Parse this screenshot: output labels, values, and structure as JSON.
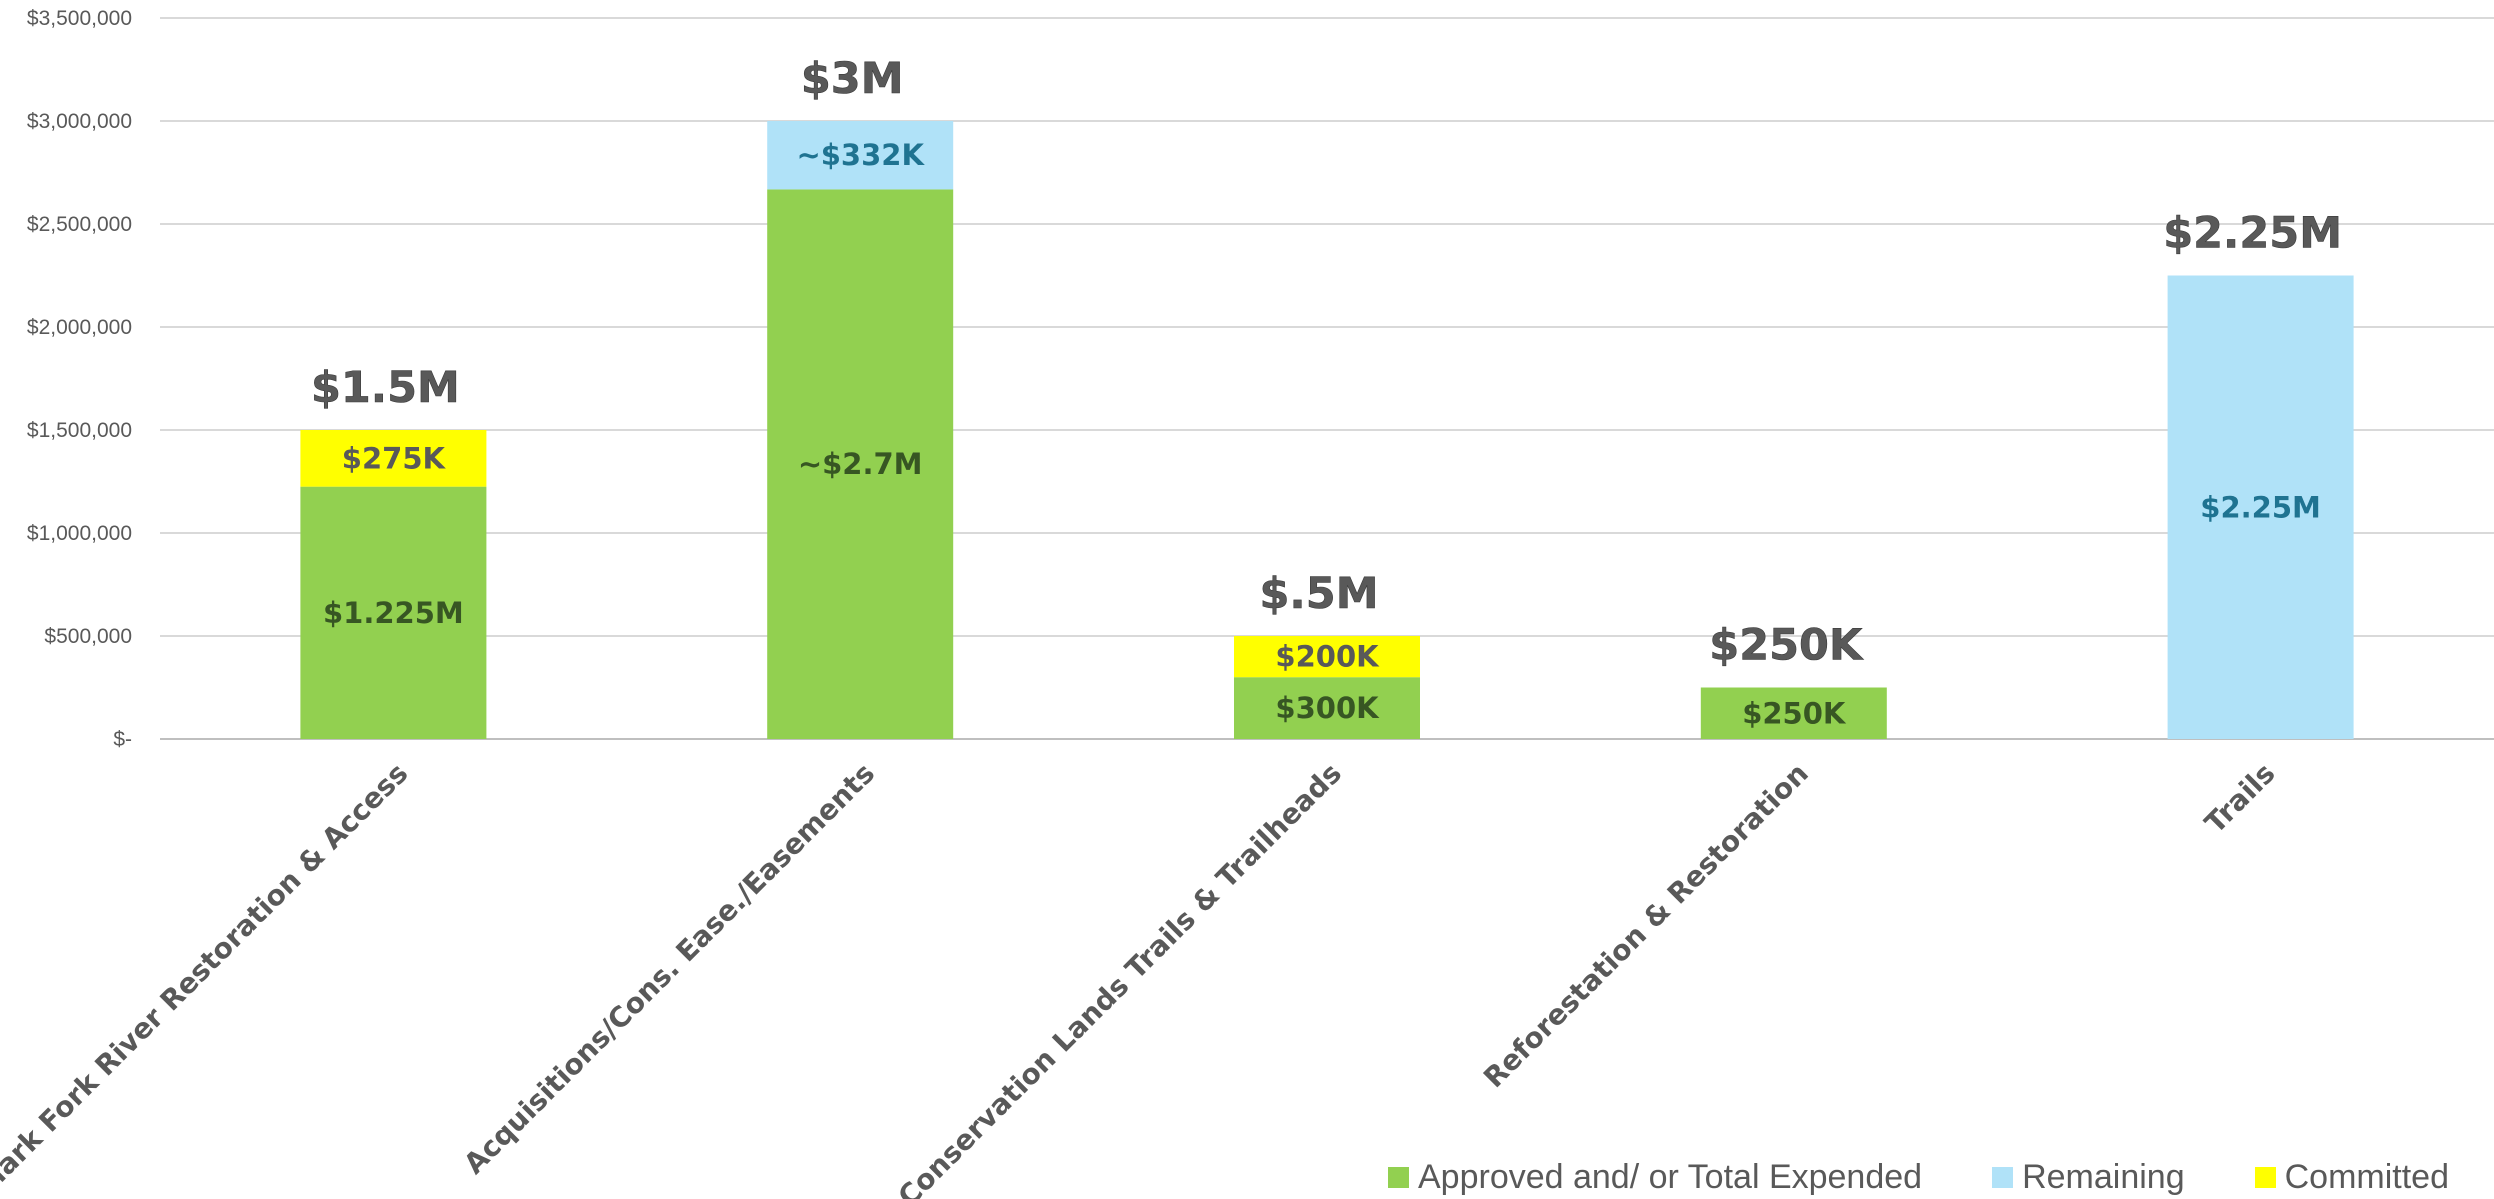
{
  "chart_data": {
    "type": "bar",
    "stacked": true,
    "categories": [
      "Clark Fork River Restoration & Access",
      "Acquisitions/Cons. Ease./Easements",
      "Conservation Lands Trails & Trailheads",
      "Reforestation & Restoration",
      "Trails"
    ],
    "series": [
      {
        "name": "Approved and/ or Total Expended",
        "color": "#92d050",
        "values": [
          1225000,
          2668000,
          300000,
          250000,
          0
        ],
        "labels": [
          "$1.225M",
          "~$2.7M",
          "$300K",
          "$250K",
          ""
        ],
        "label_color": "#375623"
      },
      {
        "name": "Remaining",
        "color": "#b0e2f8",
        "values": [
          0,
          332000,
          0,
          0,
          2250000
        ],
        "labels": [
          "",
          "~$332K",
          "",
          "",
          "$2.25M"
        ],
        "label_color": "#1f7391"
      },
      {
        "name": "Committed",
        "color": "#ffff00",
        "values": [
          275000,
          0,
          200000,
          0,
          0
        ],
        "labels": [
          "$275K",
          "",
          "$200K",
          "",
          ""
        ],
        "label_color": "#595959"
      }
    ],
    "totals": [
      "$1.5M",
      "$3M",
      "$.5M",
      "$250K",
      "$2.25M"
    ],
    "ylim": [
      0,
      3500000
    ],
    "yticks": [
      0,
      500000,
      1000000,
      1500000,
      2000000,
      2500000,
      3000000,
      3500000
    ],
    "ytick_labels": [
      "$-",
      "$500,000",
      "$1,000,000",
      "$1,500,000",
      "$2,000,000",
      "$2,500,000",
      "$3,000,000",
      "$3,500,000"
    ],
    "grid": true,
    "legend_position": "bottom-right",
    "xlabel": "",
    "ylabel": "",
    "title": ""
  }
}
